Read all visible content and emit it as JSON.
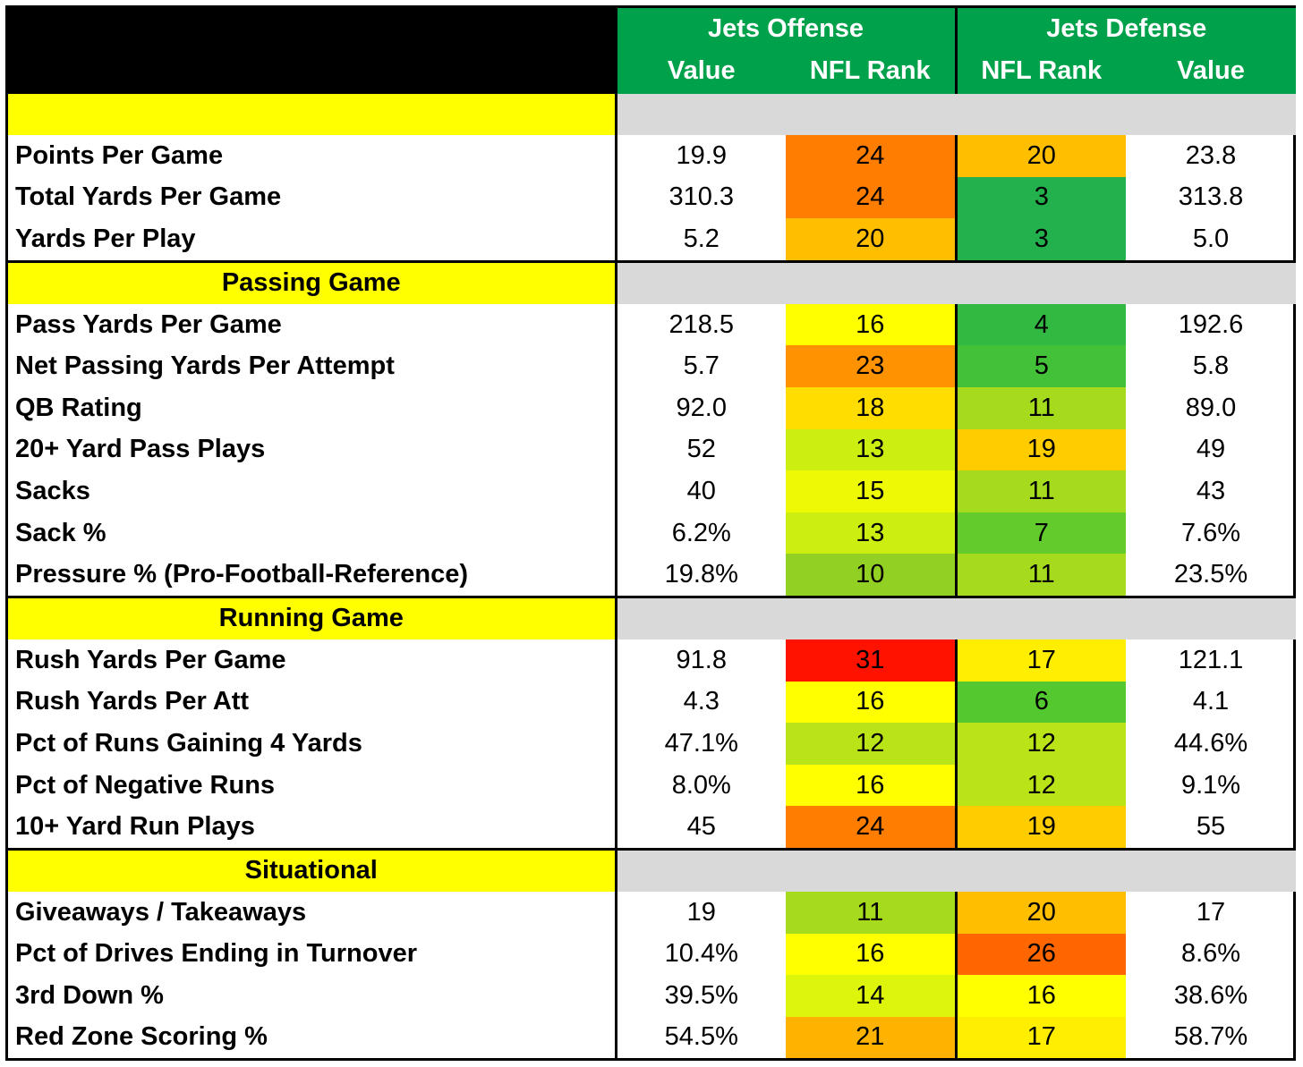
{
  "header": {
    "offense_title": "Jets Offense",
    "defense_title": "Jets Defense",
    "col_off_value": "Value",
    "col_off_rank": "NFL Rank",
    "col_def_rank": "NFL Rank",
    "col_def_value": "Value"
  },
  "colors": {
    "header_green": "#00A14B",
    "section_yellow": "#FFFF00",
    "section_gray": "#D9D9D9"
  },
  "sections": [
    {
      "title": "",
      "rows": [
        {
          "label": "Points Per Game",
          "off_value": "19.9",
          "off_rank": "24",
          "def_rank": "20",
          "def_value": "23.8"
        },
        {
          "label": "Total Yards Per Game",
          "off_value": "310.3",
          "off_rank": "24",
          "def_rank": "3",
          "def_value": "313.8"
        },
        {
          "label": "Yards Per Play",
          "off_value": "5.2",
          "off_rank": "20",
          "def_rank": "3",
          "def_value": "5.0"
        }
      ]
    },
    {
      "title": "Passing Game",
      "rows": [
        {
          "label": "Pass Yards Per Game",
          "off_value": "218.5",
          "off_rank": "16",
          "def_rank": "4",
          "def_value": "192.6"
        },
        {
          "label": "Net Passing Yards Per Attempt",
          "off_value": "5.7",
          "off_rank": "23",
          "def_rank": "5",
          "def_value": "5.8"
        },
        {
          "label": "QB Rating",
          "off_value": "92.0",
          "off_rank": "18",
          "def_rank": "11",
          "def_value": "89.0"
        },
        {
          "label": "20+ Yard Pass Plays",
          "off_value": "52",
          "off_rank": "13",
          "def_rank": "19",
          "def_value": "49"
        },
        {
          "label": "Sacks",
          "off_value": "40",
          "off_rank": "15",
          "def_rank": "11",
          "def_value": "43"
        },
        {
          "label": "Sack %",
          "off_value": "6.2%",
          "off_rank": "13",
          "def_rank": "7",
          "def_value": "7.6%"
        },
        {
          "label": "Pressure % (Pro-Football-Reference)",
          "off_value": "19.8%",
          "off_rank": "10",
          "def_rank": "11",
          "def_value": "23.5%"
        }
      ]
    },
    {
      "title": "Running Game",
      "rows": [
        {
          "label": "Rush Yards Per Game",
          "off_value": "91.8",
          "off_rank": "31",
          "def_rank": "17",
          "def_value": "121.1"
        },
        {
          "label": "Rush Yards Per Att",
          "off_value": "4.3",
          "off_rank": "16",
          "def_rank": "6",
          "def_value": "4.1"
        },
        {
          "label": "Pct of Runs Gaining 4 Yards",
          "off_value": "47.1%",
          "off_rank": "12",
          "def_rank": "12",
          "def_value": "44.6%"
        },
        {
          "label": "Pct of Negative Runs",
          "off_value": "8.0%",
          "off_rank": "16",
          "def_rank": "12",
          "def_value": "9.1%"
        },
        {
          "label": "10+ Yard Run Plays",
          "off_value": "45",
          "off_rank": "24",
          "def_rank": "19",
          "def_value": "55"
        }
      ]
    },
    {
      "title": "Situational",
      "rows": [
        {
          "label": "Giveaways / Takeaways",
          "off_value": "19",
          "off_rank": "11",
          "def_rank": "20",
          "def_value": "17"
        },
        {
          "label": "Pct of Drives Ending in Turnover",
          "off_value": "10.4%",
          "off_rank": "16",
          "def_rank": "26",
          "def_value": "8.6%"
        },
        {
          "label": "3rd Down %",
          "off_value": "39.5%",
          "off_rank": "14",
          "def_rank": "16",
          "def_value": "38.6%"
        },
        {
          "label": "Red Zone Scoring %",
          "off_value": "54.5%",
          "off_rank": "21",
          "def_rank": "17",
          "def_value": "58.7%"
        }
      ]
    }
  ]
}
